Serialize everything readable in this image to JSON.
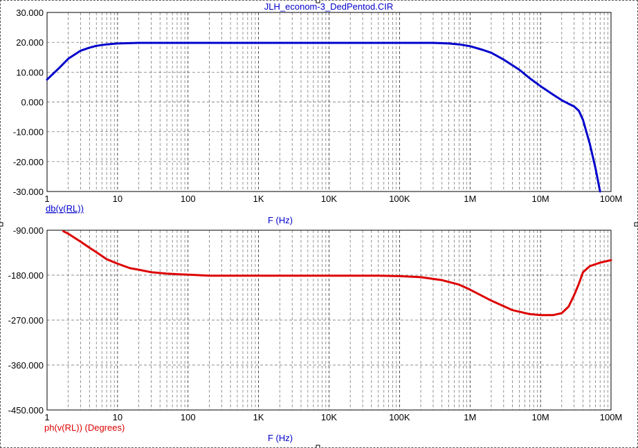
{
  "chart_data": [
    {
      "type": "line",
      "title": "JLH_econom-3_DedPentod.CIR",
      "x_scale": "log",
      "xlim": [
        1,
        100000000
      ],
      "x_tick_values": [
        1,
        10,
        100,
        1000,
        10000,
        100000,
        1000000,
        10000000,
        100000000
      ],
      "x_tick_labels": [
        "1",
        "10",
        "100",
        "1K",
        "10K",
        "100K",
        "1M",
        "10M",
        "100M"
      ],
      "xlabel": "F (Hz)",
      "ylim": [
        -30,
        30
      ],
      "y_tick_values": [
        30,
        20,
        10,
        0,
        -10,
        -20,
        -30
      ],
      "y_tick_labels": [
        "30.000",
        "20.000",
        "10.000",
        "0.000",
        "-10.000",
        "-20.000",
        "-30.000"
      ],
      "grid": true,
      "series": [
        {
          "name": "db(v(RL))",
          "color": "#0000cc",
          "x": [
            1,
            1.5,
            2,
            3,
            4,
            5,
            7,
            10,
            20,
            50,
            100,
            1000,
            10000,
            100000,
            300000,
            500000,
            700000,
            1000000,
            1500000,
            2000000,
            3000000,
            5000000,
            7000000,
            10000000,
            15000000,
            20000000,
            25000000,
            30000000,
            35000000,
            40000000,
            50000000,
            60000000,
            70000000
          ],
          "values": [
            7.5,
            11.5,
            14.5,
            17.2,
            18.2,
            18.8,
            19.3,
            19.6,
            19.8,
            19.8,
            19.8,
            19.8,
            19.8,
            19.8,
            19.8,
            19.6,
            19.3,
            18.7,
            17.5,
            16.5,
            14.2,
            10.8,
            8.0,
            5.3,
            2.5,
            0.6,
            -0.6,
            -1.5,
            -3.0,
            -6.0,
            -14.0,
            -22.0,
            -30.0
          ]
        }
      ]
    },
    {
      "type": "line",
      "title": "",
      "x_scale": "log",
      "xlim": [
        1,
        100000000
      ],
      "x_tick_values": [
        1,
        10,
        100,
        1000,
        10000,
        100000,
        1000000,
        10000000,
        100000000
      ],
      "x_tick_labels": [
        "1",
        "10",
        "100",
        "1K",
        "10K",
        "100K",
        "1M",
        "10M",
        "100M"
      ],
      "xlabel": "F (Hz)",
      "ylim": [
        -450,
        -90
      ],
      "y_tick_values": [
        -90,
        -180,
        -270,
        -360,
        -450
      ],
      "y_tick_labels": [
        "-90.000",
        "-180.000",
        "-270.000",
        "-360.000",
        "-450.000"
      ],
      "grid": true,
      "series": [
        {
          "name": "ph(v(RL)) (Degrees)",
          "color": "#dd0000",
          "x": [
            1.7,
            2,
            3,
            4,
            5,
            7,
            10,
            15,
            20,
            30,
            50,
            70,
            100,
            200,
            1000,
            10000,
            50000,
            100000,
            200000,
            400000,
            700000,
            1000000,
            2000000,
            4000000,
            7000000,
            10000000,
            15000000,
            20000000,
            25000000,
            30000000,
            35000000,
            40000000,
            50000000,
            70000000,
            100000000
          ],
          "values": [
            -92,
            -97,
            -113,
            -125,
            -134,
            -148,
            -157,
            -166,
            -169,
            -174,
            -177,
            -178,
            -179,
            -181,
            -181,
            -181,
            -181,
            -182,
            -184,
            -190,
            -199,
            -209,
            -231,
            -250,
            -258,
            -260,
            -260,
            -256,
            -243,
            -220,
            -197,
            -174,
            -162,
            -155,
            -150
          ]
        }
      ]
    }
  ]
}
